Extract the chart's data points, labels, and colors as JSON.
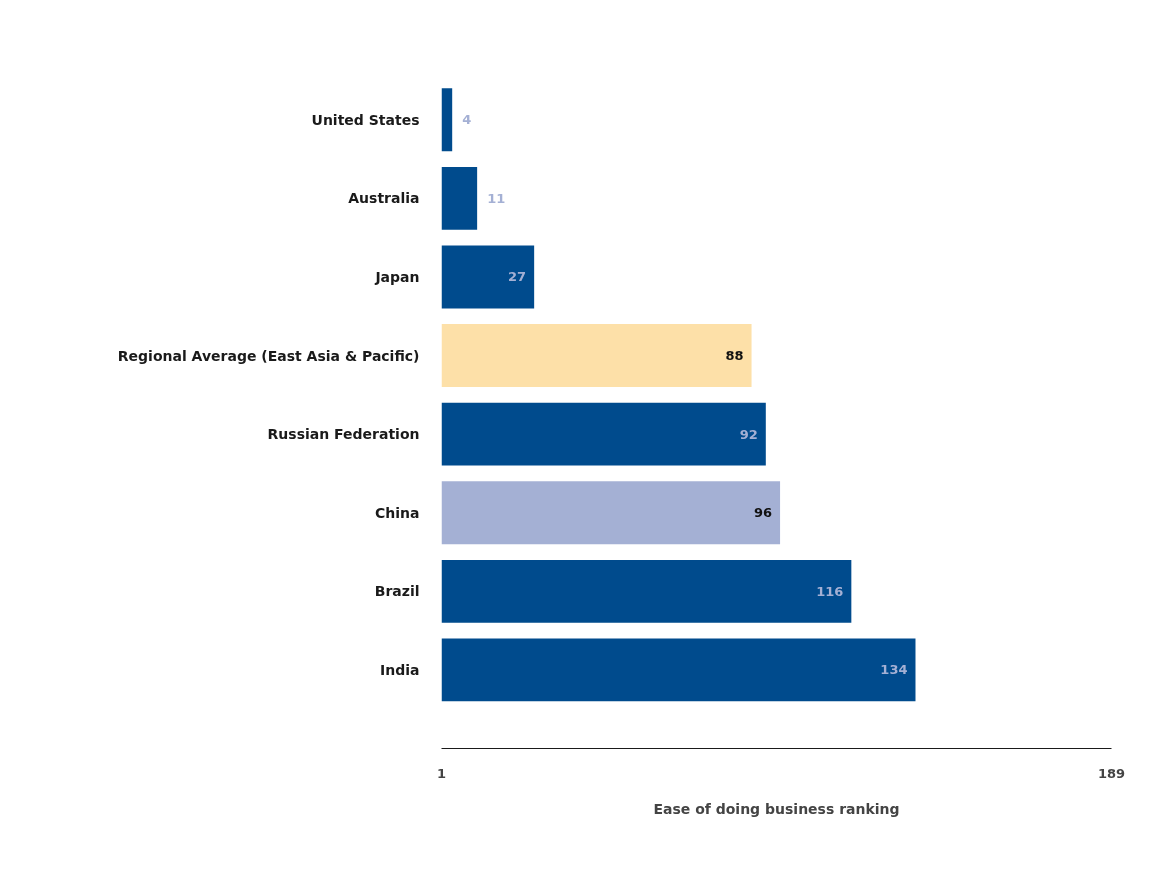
{
  "chart_data": {
    "type": "bar",
    "orientation": "horizontal",
    "xlabel": "Ease of doing business ranking",
    "categories": [
      "United States",
      "Australia",
      "Japan",
      "Regional Average (East Asia & Pacific)",
      "Russian Federation",
      "China",
      "Brazil",
      "India"
    ],
    "values": [
      4,
      11,
      27,
      88,
      92,
      96,
      116,
      134
    ],
    "colors": [
      "#004b8d",
      "#004b8d",
      "#004b8d",
      "#fde0a8",
      "#004b8d",
      "#a4b0d4",
      "#004b8d",
      "#004b8d"
    ],
    "xlim": [
      1,
      189
    ],
    "xticks": [
      1,
      189
    ],
    "data_labels": true,
    "grid": false
  }
}
